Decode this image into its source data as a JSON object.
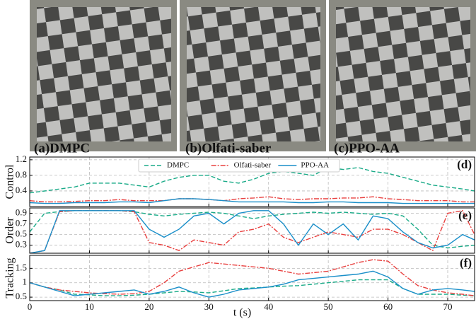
{
  "panels": [
    {
      "label": "(a)DMPC"
    },
    {
      "label": "(b)Olfati-saber"
    },
    {
      "label": "(c)PPO-AA"
    }
  ],
  "chart_data": [
    {
      "type": "line",
      "ylabel": "Control",
      "annotation": "(d)",
      "legend": "upper center",
      "grid": true,
      "x": [
        0,
        2.5,
        5,
        7.5,
        10,
        12.5,
        15,
        17.5,
        20,
        22.5,
        25,
        27.5,
        30,
        32.5,
        35,
        37.5,
        40,
        42.5,
        45,
        47.5,
        50,
        52.5,
        55,
        57.5,
        60,
        62.5,
        65,
        67.5,
        70,
        72.5,
        74.5
      ],
      "xlim": [
        0,
        74.5
      ],
      "xticks": [
        0,
        10,
        20,
        30,
        40,
        50,
        60,
        70
      ],
      "ylim": [
        0,
        1.27
      ],
      "yticks": [
        0.4,
        0.8,
        1.2
      ],
      "series": [
        {
          "name": "DMPC",
          "color": "#1aab88",
          "values": [
            0.35,
            0.4,
            0.45,
            0.5,
            0.6,
            0.6,
            0.6,
            0.55,
            0.5,
            0.65,
            0.75,
            0.8,
            0.8,
            0.65,
            0.6,
            0.7,
            0.85,
            0.9,
            0.85,
            0.8,
            1.0,
            0.95,
            1.0,
            0.9,
            0.85,
            0.75,
            0.65,
            0.55,
            0.5,
            0.45,
            0.4
          ]
        },
        {
          "name": "Olfati-saber",
          "color": "#e8403f",
          "values": [
            0.15,
            0.12,
            0.12,
            0.13,
            0.15,
            0.15,
            0.18,
            0.15,
            0.15,
            0.15,
            0.2,
            0.2,
            0.18,
            0.15,
            0.2,
            0.22,
            0.25,
            0.2,
            0.18,
            0.2,
            0.2,
            0.22,
            0.22,
            0.25,
            0.2,
            0.18,
            0.15,
            0.15,
            0.15,
            0.12,
            0.12
          ]
        },
        {
          "name": "PPO-AA",
          "color": "#1a8fc9",
          "values": [
            0.1,
            0.08,
            0.08,
            0.1,
            0.1,
            0.1,
            0.12,
            0.12,
            0.1,
            0.15,
            0.2,
            0.2,
            0.18,
            0.15,
            0.12,
            0.12,
            0.12,
            0.12,
            0.1,
            0.1,
            0.12,
            0.12,
            0.1,
            0.1,
            0.1,
            0.08,
            0.08,
            0.08,
            0.08,
            0.08,
            0.08
          ]
        }
      ]
    },
    {
      "type": "line",
      "ylabel": "Order",
      "annotation": "(e)",
      "grid": true,
      "x": [
        0,
        2.5,
        5,
        7.5,
        10,
        12.5,
        15,
        17.5,
        20,
        22.5,
        25,
        27.5,
        30,
        32.5,
        35,
        37.5,
        40,
        42.5,
        45,
        47.5,
        50,
        52.5,
        55,
        57.5,
        60,
        62.5,
        65,
        67.5,
        70,
        72.5,
        74.5
      ],
      "xlim": [
        0,
        74.5
      ],
      "xticks": [
        0,
        10,
        20,
        30,
        40,
        50,
        60,
        70
      ],
      "ylim": [
        0.15,
        1.0
      ],
      "yticks": [
        0.3,
        0.5,
        0.7,
        0.9
      ],
      "series": [
        {
          "name": "DMPC",
          "color": "#1aab88",
          "values": [
            0.55,
            0.9,
            0.93,
            0.95,
            0.95,
            0.95,
            0.95,
            0.93,
            0.88,
            0.85,
            0.88,
            0.9,
            0.92,
            0.9,
            0.85,
            0.8,
            0.85,
            0.88,
            0.9,
            0.92,
            0.9,
            0.92,
            0.9,
            0.88,
            0.9,
            0.85,
            0.6,
            0.3,
            0.25,
            0.28,
            0.3
          ]
        },
        {
          "name": "Olfati-saber",
          "color": "#e8403f",
          "values": [
            0.15,
            0.2,
            0.93,
            0.95,
            0.95,
            0.95,
            0.95,
            0.93,
            0.35,
            0.3,
            0.2,
            0.4,
            0.35,
            0.3,
            0.55,
            0.6,
            0.7,
            0.45,
            0.35,
            0.45,
            0.55,
            0.5,
            0.45,
            0.6,
            0.6,
            0.5,
            0.35,
            0.2,
            0.9,
            0.95,
            0.5
          ]
        },
        {
          "name": "PPO-AA",
          "color": "#1a8fc9",
          "values": [
            0.15,
            0.2,
            0.95,
            0.95,
            0.95,
            0.95,
            0.95,
            0.95,
            0.6,
            0.45,
            0.6,
            0.85,
            0.9,
            0.7,
            0.9,
            0.95,
            0.95,
            0.7,
            0.3,
            0.7,
            0.5,
            0.7,
            0.4,
            0.85,
            0.8,
            0.55,
            0.35,
            0.25,
            0.3,
            0.5,
            0.4
          ]
        }
      ]
    },
    {
      "type": "line",
      "ylabel": "Tracking",
      "annotation": "(f)",
      "xlabel": "t (s)",
      "grid": true,
      "x": [
        0,
        2.5,
        5,
        7.5,
        10,
        12.5,
        15,
        17.5,
        20,
        22.5,
        25,
        27.5,
        30,
        32.5,
        35,
        37.5,
        40,
        42.5,
        45,
        47.5,
        50,
        52.5,
        55,
        57.5,
        60,
        62.5,
        65,
        67.5,
        70,
        72.5,
        74.5
      ],
      "xlim": [
        0,
        74.5
      ],
      "xticks": [
        0,
        10,
        20,
        30,
        40,
        50,
        60,
        70
      ],
      "ylim": [
        0.38,
        1.95
      ],
      "yticks": [
        0.5,
        1.0,
        1.5
      ],
      "series": [
        {
          "name": "DMPC",
          "color": "#1aab88",
          "values": [
            1.0,
            0.85,
            0.75,
            0.6,
            0.58,
            0.55,
            0.55,
            0.57,
            0.6,
            0.65,
            0.7,
            0.68,
            0.65,
            0.72,
            0.8,
            0.82,
            0.85,
            0.88,
            0.9,
            0.95,
            1.0,
            1.05,
            1.1,
            1.1,
            1.1,
            0.8,
            0.6,
            0.6,
            0.6,
            0.57,
            0.55
          ]
        },
        {
          "name": "Olfati-saber",
          "color": "#e8403f",
          "values": [
            1.0,
            0.85,
            0.75,
            0.7,
            0.65,
            0.62,
            0.6,
            0.62,
            0.7,
            1.0,
            1.4,
            1.55,
            1.7,
            1.65,
            1.6,
            1.55,
            1.5,
            1.4,
            1.3,
            1.35,
            1.4,
            1.55,
            1.7,
            1.8,
            1.75,
            1.3,
            0.9,
            0.75,
            0.65,
            0.6,
            0.55
          ]
        },
        {
          "name": "PPO-AA",
          "color": "#1a8fc9",
          "values": [
            1.0,
            0.85,
            0.7,
            0.55,
            0.6,
            0.65,
            0.7,
            0.75,
            0.6,
            0.7,
            0.85,
            0.65,
            0.5,
            0.6,
            0.75,
            0.8,
            0.85,
            0.95,
            1.1,
            1.15,
            1.2,
            1.25,
            1.3,
            1.4,
            1.2,
            0.8,
            0.6,
            0.75,
            0.8,
            0.75,
            0.7
          ]
        }
      ]
    }
  ]
}
